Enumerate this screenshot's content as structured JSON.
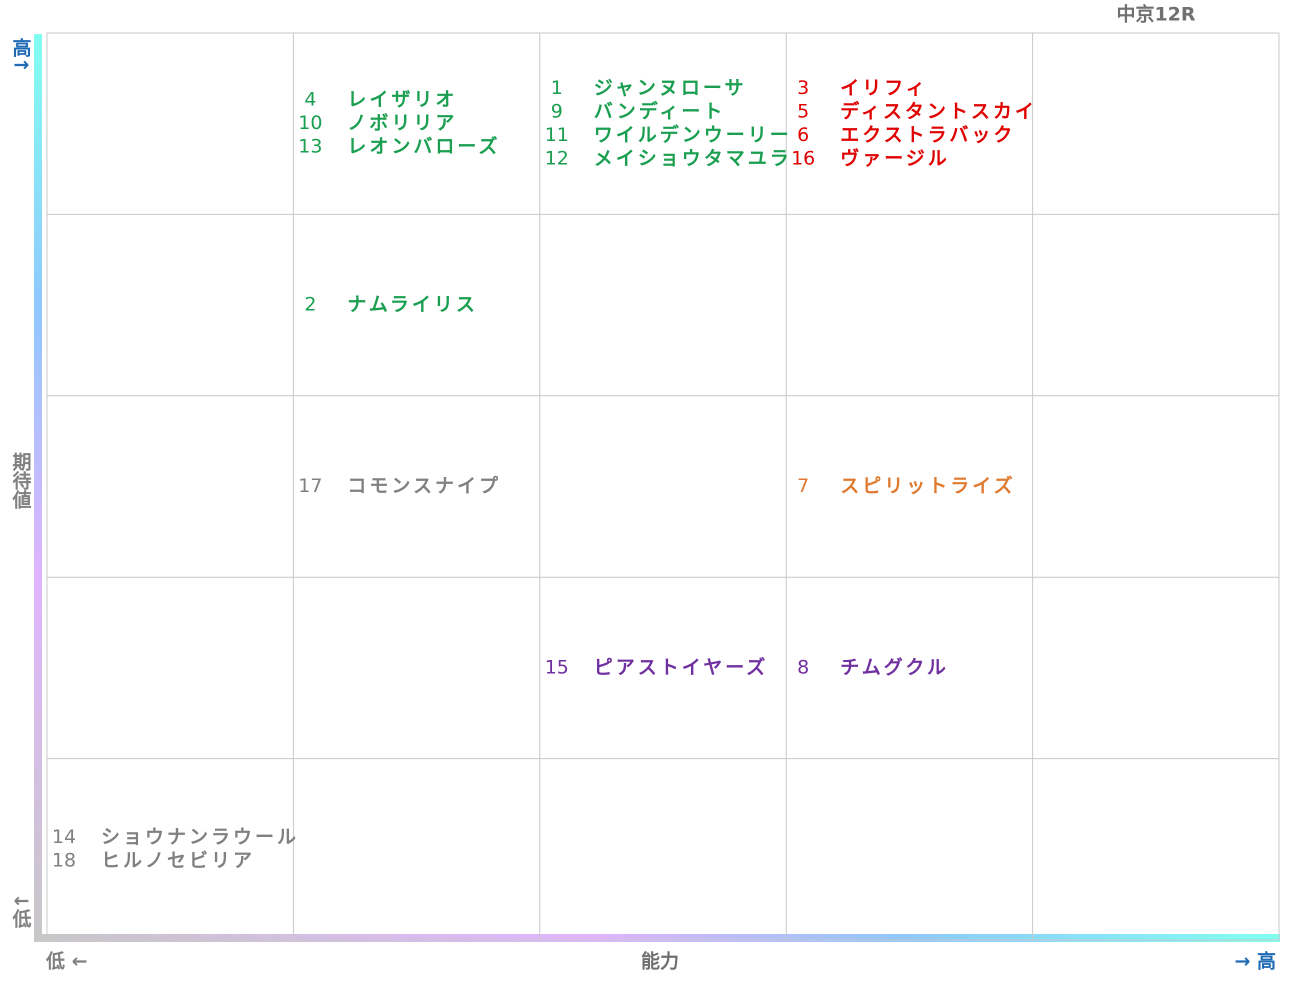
{
  "title": "中京12R",
  "y_axis": {
    "label": "期待値",
    "high": "高↑",
    "low": "↓低"
  },
  "x_axis": {
    "label": "能力",
    "low": "低 ←",
    "high": "→ 高"
  },
  "grid": {
    "rows": [
      [
        {
          "entries": []
        },
        {
          "color": "#1a9e50",
          "entries": [
            {
              "number": 4,
              "name": "レイザリオ"
            },
            {
              "number": 10,
              "name": "ノボリリア"
            },
            {
              "number": 13,
              "name": "レオンバローズ"
            }
          ]
        },
        {
          "color": "#1a9e50",
          "entries": [
            {
              "number": 1,
              "name": "ジャンヌローサ"
            },
            {
              "number": 9,
              "name": "バンディート"
            },
            {
              "number": 11,
              "name": "ワイルデンウーリー"
            },
            {
              "number": 12,
              "name": "メイショウタマユラ"
            }
          ]
        },
        {
          "color": "#e00000",
          "entries": [
            {
              "number": 3,
              "name": "イリフィ"
            },
            {
              "number": 5,
              "name": "ディスタントスカイ"
            },
            {
              "number": 6,
              "name": "エクストラバック"
            },
            {
              "number": 16,
              "name": "ヴァージル"
            }
          ]
        },
        {
          "entries": []
        }
      ],
      [
        {
          "entries": []
        },
        {
          "color": "#1a9e50",
          "entries": [
            {
              "number": 2,
              "name": "ナムライリス"
            }
          ]
        },
        {
          "entries": []
        },
        {
          "entries": []
        },
        {
          "entries": []
        }
      ],
      [
        {
          "entries": []
        },
        {
          "color": "#808080",
          "entries": [
            {
              "number": 17,
              "name": "コモンスナイプ"
            }
          ]
        },
        {
          "entries": []
        },
        {
          "color": "#e07a30",
          "entries": [
            {
              "number": 7,
              "name": "スピリットライズ"
            }
          ]
        },
        {
          "entries": []
        }
      ],
      [
        {
          "entries": []
        },
        {
          "entries": []
        },
        {
          "color": "#7030a0",
          "entries": [
            {
              "number": 15,
              "name": "ピアストイヤーズ"
            }
          ]
        },
        {
          "color": "#7030a0",
          "entries": [
            {
              "number": 8,
              "name": "チムグクル"
            }
          ]
        },
        {
          "entries": []
        }
      ],
      [
        {
          "color": "#808080",
          "entries": [
            {
              "number": 14,
              "name": "ショウナンラウール"
            },
            {
              "number": 18,
              "name": "ヒルノセビリア"
            }
          ]
        },
        {
          "entries": []
        },
        {
          "entries": []
        },
        {
          "entries": []
        },
        {
          "entries": []
        }
      ]
    ]
  }
}
